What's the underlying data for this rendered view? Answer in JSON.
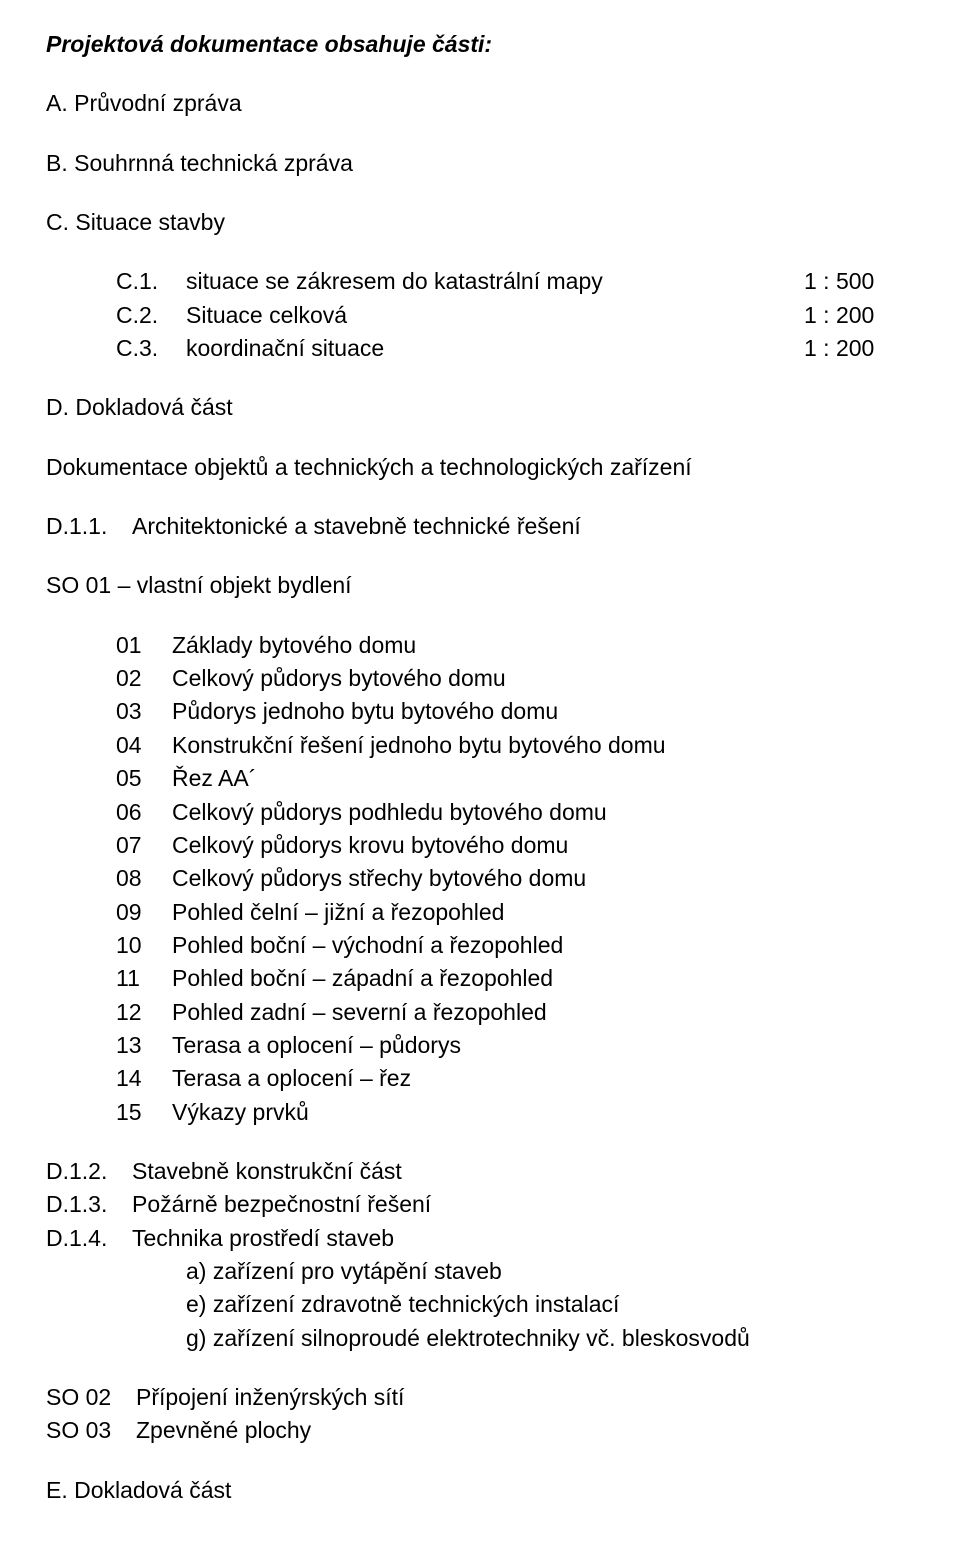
{
  "title": "Projektová dokumentace obsahuje části:",
  "parts": {
    "A": {
      "key": "A.",
      "label": "Průvodní zpráva"
    },
    "B": {
      "key": "B.",
      "label": "Souhrnná technická zpráva"
    },
    "C": {
      "key": "C.",
      "label": "Situace stavby",
      "items": [
        {
          "key": "C.1.",
          "label": "situace se zákresem do katastrální mapy",
          "scale": "1 : 500"
        },
        {
          "key": "C.2.",
          "label": "Situace celková",
          "scale": "1 : 200"
        },
        {
          "key": "C.3.",
          "label": "koordinační situace",
          "scale": "1 : 200"
        }
      ]
    },
    "D": {
      "key": "D.",
      "label": "Dokladová část"
    }
  },
  "doc_objects_heading": "Dokumentace objektů a technických a technologických zařízení",
  "d11": {
    "key": "D.1.1.",
    "label": "Architektonické a stavebně technické řešení"
  },
  "so01": {
    "label": "SO 01 – vlastní objekt bydlení",
    "items": [
      {
        "num": "01",
        "label": "Základy bytového domu"
      },
      {
        "num": "02",
        "label": "Celkový půdorys bytového domu"
      },
      {
        "num": "03",
        "label": "Půdorys jednoho bytu bytového domu"
      },
      {
        "num": "04",
        "label": "Konstrukční řešení jednoho bytu bytového domu"
      },
      {
        "num": "05",
        "label": "Řez AA´"
      },
      {
        "num": "06",
        "label": "Celkový půdorys podhledu bytového domu"
      },
      {
        "num": "07",
        "label": "Celkový půdorys krovu bytového domu"
      },
      {
        "num": "08",
        "label": "Celkový půdorys střechy bytového domu"
      },
      {
        "num": "09",
        "label": "Pohled čelní – jižní a řezopohled"
      },
      {
        "num": "10",
        "label": "Pohled boční – východní a řezopohled"
      },
      {
        "num": "11",
        "label": "Pohled boční – západní a řezopohled"
      },
      {
        "num": "12",
        "label": "Pohled zadní – severní a řezopohled"
      },
      {
        "num": "13",
        "label": "Terasa a oplocení – půdorys"
      },
      {
        "num": "14",
        "label": "Terasa a oplocení – řez"
      },
      {
        "num": "15",
        "label": "Výkazy prvků"
      }
    ]
  },
  "d12": {
    "key": "D.1.2.",
    "label": "Stavebně konstrukční část"
  },
  "d13": {
    "key": "D.1.3.",
    "label": "Požárně bezpečnostní řešení"
  },
  "d14": {
    "key": "D.1.4.",
    "label": "Technika prostředí staveb",
    "sub": [
      "a) zařízení pro vytápění staveb",
      "e) zařízení zdravotně technických instalací",
      "g) zařízení silnoproudé elektrotechniky  vč. bleskosvodů"
    ]
  },
  "so02": {
    "key": "SO 02",
    "label": "Přípojení inženýrských sítí"
  },
  "so03": {
    "key": "SO 03",
    "label": "Zpevněné plochy"
  },
  "E": {
    "key": "E.",
    "label": "Dokladová část"
  }
}
